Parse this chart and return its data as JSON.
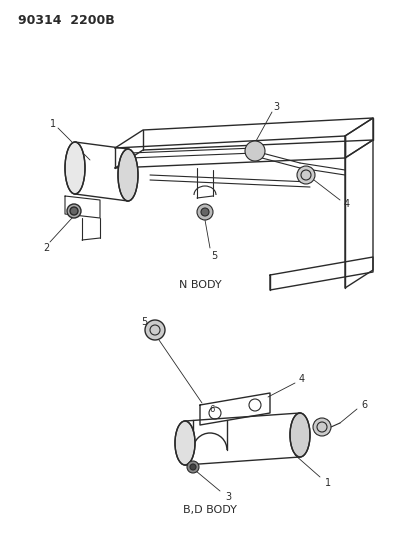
{
  "background_color": "#f5f5f0",
  "line_color": "#2a2a2a",
  "title": "90314  2200B",
  "top_label": "N BODY",
  "bottom_label": "B,D BODY",
  "figsize": [
    3.99,
    5.33
  ],
  "dpi": 100
}
